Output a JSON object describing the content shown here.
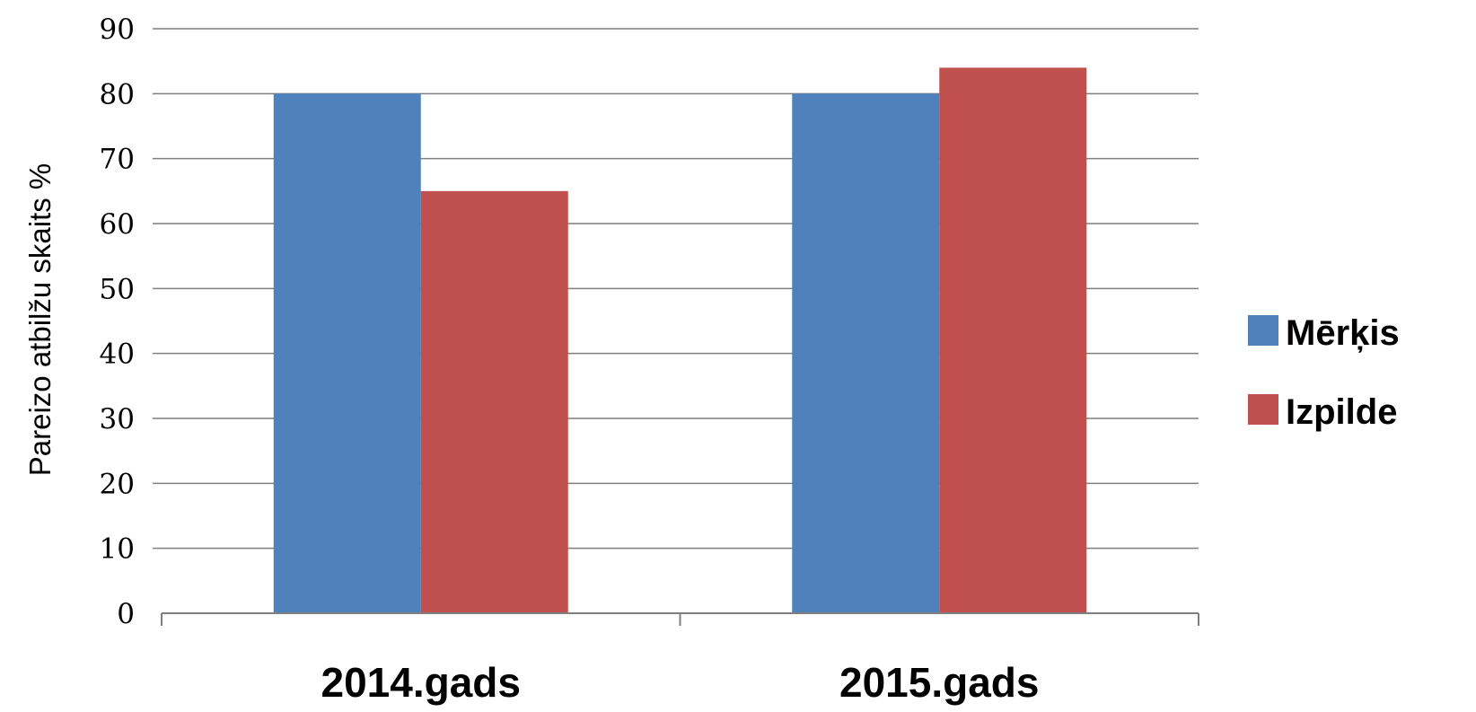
{
  "chart_data": {
    "type": "bar",
    "categories": [
      "2014.gads",
      "2015.gads"
    ],
    "series": [
      {
        "name": "Mērķis",
        "values": [
          80,
          80
        ],
        "color": "#4f81bd"
      },
      {
        "name": "Izpilde",
        "values": [
          65,
          84
        ],
        "color": "#c0504d"
      }
    ],
    "title": "",
    "xlabel": "",
    "ylabel": "Pareizo atbilžu skaits %",
    "ylim": [
      0,
      90
    ],
    "yticks": [
      "0",
      "10",
      "20",
      "30",
      "40",
      "50",
      "60",
      "70",
      "80",
      "90"
    ],
    "grid": true,
    "legend_position": "right"
  }
}
